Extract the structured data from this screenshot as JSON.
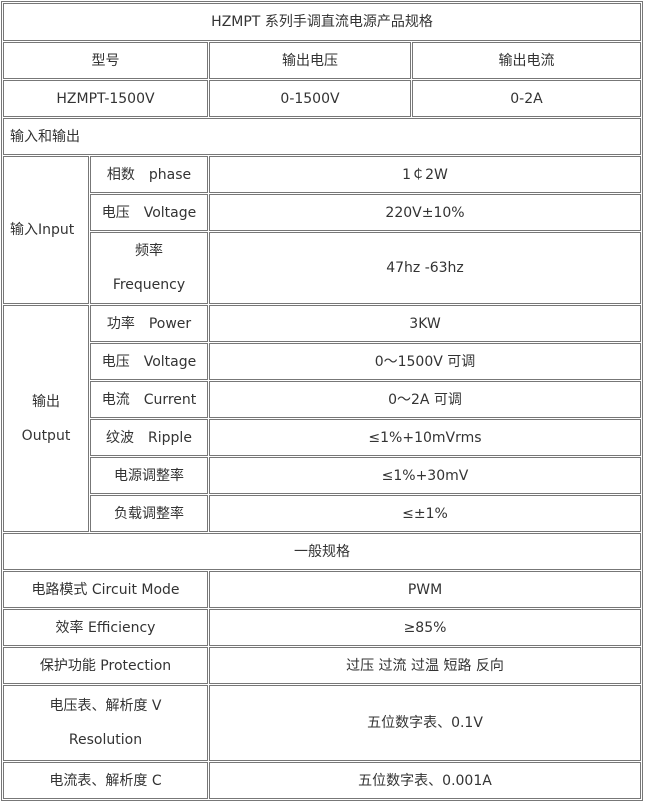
{
  "title": "HZMPT 系列手调直流电源产品规格",
  "header": {
    "model": "型号",
    "voltage": "输出电压",
    "current": "输出电流"
  },
  "model_row": {
    "model": "HZMPT-1500V",
    "voltage": "0-1500V",
    "current": "0-2A"
  },
  "io_section": "输入和输出",
  "input": {
    "group_label": "输入Input",
    "rows": [
      {
        "label": "相数　phase",
        "value": "1￠2W"
      },
      {
        "label": "电压　Voltage",
        "value": "220V±10%"
      },
      {
        "label_cn": "频率",
        "label_en": "Frequency",
        "value": "47hz -63hz"
      }
    ]
  },
  "output": {
    "group_label_cn": "输出",
    "group_label_en": "Output",
    "rows": [
      {
        "label": "功率　Power",
        "value": "3KW"
      },
      {
        "label": "电压　Voltage",
        "value": "0～1500V 可调"
      },
      {
        "label": "电流　Current",
        "value": "0～2A 可调"
      },
      {
        "label": "纹波　Ripple",
        "value": "≤1%+10mVrms"
      },
      {
        "label": "电源调整率",
        "value": "≤1%+30mV"
      },
      {
        "label": "负载调整率",
        "value": "≤±1%"
      }
    ]
  },
  "general_section": "一般规格",
  "general": {
    "rows": [
      {
        "label": "电路模式 Circuit Mode",
        "value": "PWM"
      },
      {
        "label": "效率 Efficiency",
        "value": "≥85%"
      },
      {
        "label": "保护功能 Protection",
        "value": "过压 过流 过温 短路 反向"
      },
      {
        "label_cn": "电压表、解析度 V",
        "label_en": "Resolution",
        "value": "五位数字表、0.1V"
      },
      {
        "label": "电流表、解析度 C",
        "value": "五位数字表、0.001A"
      }
    ]
  }
}
